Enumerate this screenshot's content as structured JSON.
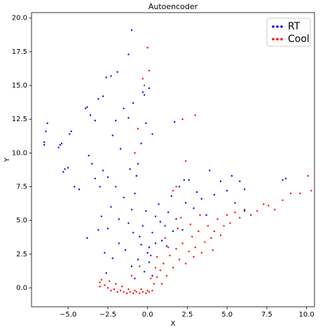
{
  "chart_data": {
    "type": "scatter",
    "title": "Autoencoder",
    "x_label": "X",
    "y_label": "Y",
    "xlim": [
      -7.3,
      10.5
    ],
    "ylim": [
      -1.4,
      20.4
    ],
    "xticks": [
      {
        "value": -5,
        "label": "−5.0"
      },
      {
        "value": -2.5,
        "label": "−2.5"
      },
      {
        "value": 0,
        "label": "0.0"
      },
      {
        "value": 2.5,
        "label": "2.5"
      },
      {
        "value": 5,
        "label": "5.0"
      },
      {
        "value": 7.5,
        "label": "7.5"
      },
      {
        "value": 10,
        "label": "10.0"
      }
    ],
    "yticks": [
      {
        "value": 0,
        "label": "0.0"
      },
      {
        "value": 2.5,
        "label": "2.5"
      },
      {
        "value": 5,
        "label": "5.0"
      },
      {
        "value": 7.5,
        "label": "7.5"
      },
      {
        "value": 10,
        "label": "10.0"
      },
      {
        "value": 12.5,
        "label": "12.5"
      },
      {
        "value": 15,
        "label": "15.0"
      },
      {
        "value": 17.5,
        "label": "17.5"
      },
      {
        "value": 20,
        "label": "20.0"
      }
    ],
    "grid": false,
    "legend": "upper right",
    "series": [
      {
        "name": "RT",
        "color": "#0000ff",
        "x": [
          -6.5,
          -6.4,
          -6.3,
          -6.5,
          -5.6,
          -5.4,
          -5.5,
          -4.8,
          -4.9,
          -5.3,
          -5.0,
          -5.2,
          -4.6,
          -4.3,
          -3.9,
          -3.8,
          -3.6,
          -3.3,
          -3.1,
          -2.8,
          -2.6,
          -2.3,
          -1.9,
          -1.2,
          -1.0,
          -0.3,
          -0.2,
          0.1,
          -3.7,
          -3.5,
          -3.3,
          -3.0,
          -2.8,
          -2.5,
          -2.2,
          -2.0,
          -1.7,
          -1.5,
          -1.2,
          -0.9,
          -0.6,
          -0.4,
          -0.1,
          0.3,
          -1.1,
          -0.7,
          -3.8,
          -3.1,
          -2.9,
          -2.5,
          -2.3,
          -2.0,
          -1.8,
          -1.5,
          -1.2,
          -1.0,
          -0.8,
          -0.5,
          -0.3,
          -0.1,
          0.1,
          0.2,
          0.3,
          0.5,
          0.7,
          0.9,
          1.1,
          1.3,
          1.5,
          1.8,
          2.0,
          2.2,
          2.4,
          2.6,
          2.9,
          3.1,
          3.4,
          3.7,
          3.9,
          4.2,
          4.6,
          5.0,
          5.3,
          5.8,
          6.1,
          6.1,
          5.5,
          -0.6,
          -1.0,
          -1.4,
          -1.8,
          -2.2,
          -2.6,
          -2.7,
          -0.8,
          -0.2,
          0.0,
          0.1,
          0.3,
          0.5,
          0.8,
          1.2,
          1.6,
          -0.4,
          -0.9,
          8.5,
          8.7,
          2.3,
          1.7
        ],
        "values": [
          10.8,
          11.6,
          12.2,
          10.6,
          10.4,
          10.7,
          10.6,
          11.6,
          11.4,
          8.6,
          8.9,
          8.8,
          7.5,
          7.3,
          13.3,
          13.4,
          12.8,
          12.4,
          14.0,
          14.2,
          15.6,
          15.7,
          16.0,
          17.3,
          19.1,
          14.5,
          14.3,
          14.8,
          9.8,
          9.2,
          8.1,
          7.5,
          8.7,
          8.2,
          11.3,
          12.4,
          10.3,
          13.3,
          12.6,
          13.7,
          9.2,
          10.7,
          12.2,
          11.4,
          8.8,
          8.3,
          3.7,
          4.3,
          5.3,
          4.4,
          6.0,
          7.5,
          5.1,
          6.7,
          4.8,
          5.8,
          7.0,
          3.8,
          4.6,
          5.7,
          3.0,
          2.4,
          4.1,
          5.3,
          6.2,
          3.5,
          4.6,
          5.6,
          6.8,
          5.1,
          7.5,
          4.3,
          6.3,
          8.0,
          5.9,
          7.1,
          6.6,
          5.4,
          8.7,
          6.9,
          7.9,
          7.2,
          8.3,
          7.9,
          7.3,
          5.7,
          6.3,
          2.1,
          1.6,
          2.8,
          3.3,
          2.2,
          1.1,
          2.6,
          0.7,
          1.2,
          2.6,
          1.9,
          0.9,
          3.3,
          4.9,
          3.1,
          4.2,
          3.2,
          4.1,
          8.0,
          8.1,
          8.0,
          12.3
        ]
      },
      {
        "name": "Cool",
        "color": "#ff0000",
        "x": [
          -2.9,
          -2.7,
          -2.5,
          -2.3,
          -2.1,
          -1.9,
          -1.7,
          -1.5,
          -1.3,
          -1.1,
          -0.9,
          -0.7,
          -0.5,
          -0.3,
          -0.1,
          0.1,
          0.3,
          -2.0,
          -1.6,
          -1.2,
          -0.8,
          -0.4,
          0.0,
          0.4,
          0.6,
          0.8,
          1.0,
          1.2,
          1.4,
          1.6,
          1.8,
          2.0,
          2.2,
          2.4,
          2.6,
          2.8,
          3.0,
          3.2,
          3.4,
          3.6,
          3.8,
          4.0,
          4.2,
          4.4,
          4.6,
          4.8,
          5.0,
          5.2,
          5.5,
          5.8,
          6.1,
          6.5,
          6.9,
          7.3,
          7.6,
          8.0,
          8.5,
          9.0,
          9.6,
          10.1,
          10.3,
          1.1,
          1.9,
          2.7,
          0.5,
          0.2,
          -0.5,
          -1.0,
          0.6,
          1.3,
          2.1,
          3.3,
          4.1,
          2.9,
          0.9,
          -0.3,
          0.1,
          -0.2,
          0.0,
          1.6,
          2.2,
          2.4,
          3.0,
          -0.6,
          -0.8,
          1.8,
          -3.0,
          -3.0,
          -2.4
        ],
        "values": [
          0.6,
          0.2,
          0.0,
          -0.2,
          -0.1,
          -0.3,
          -0.2,
          -0.3,
          -0.4,
          -0.3,
          -0.4,
          -0.3,
          -0.4,
          -0.3,
          -0.4,
          -0.3,
          -0.2,
          0.3,
          0.1,
          -0.1,
          -0.2,
          -0.1,
          -0.2,
          0.3,
          0.8,
          1.3,
          1.8,
          0.9,
          2.4,
          1.5,
          2.9,
          2.1,
          3.3,
          1.8,
          2.7,
          3.8,
          3.0,
          4.2,
          2.6,
          3.4,
          4.6,
          3.7,
          4.2,
          5.1,
          3.9,
          4.6,
          5.4,
          4.8,
          5.6,
          5.2,
          5.8,
          5.4,
          5.7,
          6.2,
          6.1,
          5.8,
          6.5,
          7.0,
          7.0,
          8.3,
          7.2,
          3.7,
          4.4,
          4.7,
          1.5,
          0.7,
          1.6,
          0.9,
          2.3,
          3.0,
          5.2,
          5.4,
          2.8,
          2.3,
          0.3,
          15.5,
          16.1,
          15.0,
          17.8,
          7.2,
          12.5,
          9.4,
          12.8,
          11.8,
          10.0,
          7.5,
          0.1,
          0.4,
          0.5
        ]
      }
    ]
  }
}
